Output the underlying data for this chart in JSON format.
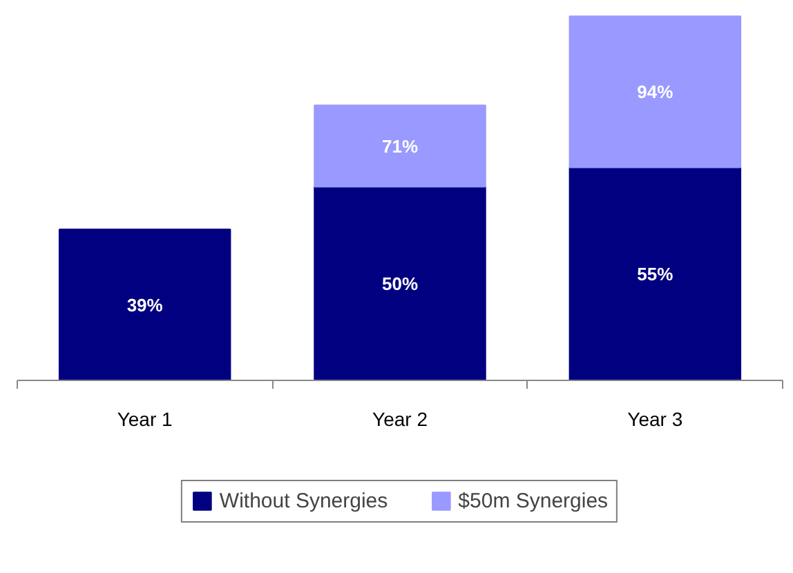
{
  "chart_data": {
    "type": "bar",
    "stacked": true,
    "legend": "bottom",
    "categories": [
      "Year 1",
      "Year 2",
      "Year 3"
    ],
    "series": [
      {
        "name": "Without Synergies",
        "color": "#000080",
        "values": [
          39,
          50,
          55
        ],
        "value_labels": [
          "39%",
          "50%",
          "55%"
        ]
      },
      {
        "name": "$50m Synergies",
        "color": "#9999ff",
        "values": [
          null,
          21,
          39
        ]
      }
    ],
    "totals": [
      null,
      "71%",
      "94%"
    ]
  }
}
